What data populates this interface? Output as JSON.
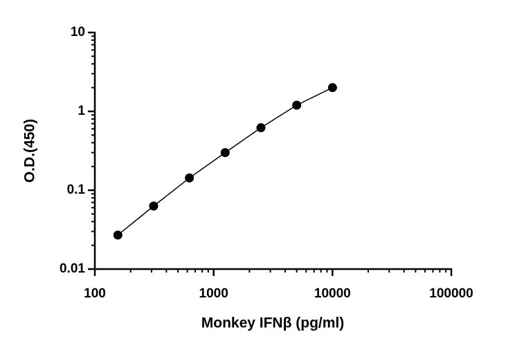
{
  "chart_data": {
    "type": "scatter",
    "x_label": "Monkey IFNβ (pg/ml)",
    "y_label": "O.D.(450)",
    "x": [
      156.25,
      312.5,
      625,
      1250,
      2500,
      5000,
      10000
    ],
    "values": [
      0.027,
      0.063,
      0.143,
      0.3,
      0.62,
      1.2,
      2.0
    ],
    "color": "#000000",
    "connect": true,
    "xlog": true,
    "ylog": true,
    "xlim": [
      100,
      100000
    ],
    "xticks": [
      100,
      1000,
      10000,
      100000
    ],
    "ylim": [
      0.01,
      10
    ],
    "yticks": [
      0.01,
      0.1,
      1,
      10
    ]
  }
}
